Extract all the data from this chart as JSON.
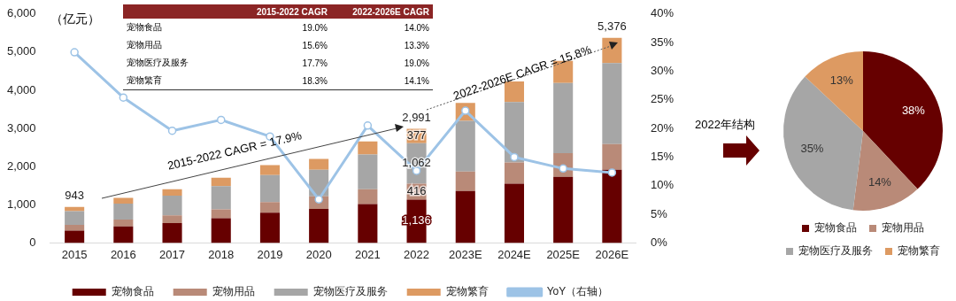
{
  "chart_data": [
    {
      "type": "bar",
      "stacked": true,
      "ylabel": "（亿元）",
      "categories": [
        "2015",
        "2016",
        "2017",
        "2018",
        "2019",
        "2020",
        "2021",
        "2022",
        "2023E",
        "2024E",
        "2025E",
        "2026E"
      ],
      "series": [
        {
          "name": "宠物食品",
          "color": "#660000",
          "values": [
            325,
            430,
            520,
            650,
            790,
            890,
            1020,
            1136,
            1360,
            1550,
            1730,
            1917
          ],
          "value_labels": [
            null,
            null,
            null,
            null,
            null,
            null,
            null,
            "1,136",
            null,
            null,
            null,
            null
          ]
        },
        {
          "name": "宠物用品",
          "color": "#b98a78",
          "values": [
            150,
            180,
            200,
            230,
            280,
            330,
            390,
            416,
            510,
            560,
            620,
            674
          ],
          "value_labels": [
            null,
            null,
            null,
            null,
            null,
            null,
            null,
            "416",
            null,
            null,
            null,
            null
          ]
        },
        {
          "name": "宠物医疗及服务",
          "color": "#a6a6a6",
          "values": [
            360,
            420,
            520,
            610,
            710,
            700,
            910,
            1062,
            1330,
            1580,
            1840,
            2121
          ],
          "value_labels": [
            null,
            null,
            null,
            null,
            null,
            null,
            null,
            "1,062",
            null,
            null,
            null,
            null
          ]
        },
        {
          "name": "宠物繁育",
          "color": "#dd9a62",
          "values": [
            108,
            150,
            170,
            220,
            260,
            280,
            340,
            377,
            470,
            540,
            580,
            664
          ],
          "value_labels": [
            null,
            null,
            null,
            null,
            null,
            null,
            null,
            "377",
            null,
            null,
            null,
            null
          ]
        },
        {
          "name": "YoY（右轴）",
          "type": "line",
          "axis": "y2",
          "marker": "circle",
          "color": "#9dc3e6",
          "values": [
            33.3,
            25.4,
            19.6,
            21.5,
            18.6,
            7.6,
            20.5,
            12.6,
            23.1,
            15.0,
            13.0,
            12.3
          ]
        }
      ],
      "totals": [
        "943",
        null,
        null,
        null,
        null,
        null,
        null,
        "2,991",
        null,
        null,
        null,
        "5,376"
      ],
      "ylim": [
        0,
        6000
      ],
      "yticks": [
        {
          "value": 0,
          "label": "0"
        },
        {
          "value": 1000,
          "label": "1,000"
        },
        {
          "value": 2000,
          "label": "2,000"
        },
        {
          "value": 3000,
          "label": "3,000"
        },
        {
          "value": 4000,
          "label": "4,000"
        },
        {
          "value": 5000,
          "label": "5,000"
        },
        {
          "value": 6000,
          "label": "6,000"
        }
      ],
      "y2lim": [
        0,
        40
      ],
      "y2ticks": [
        {
          "value": 0,
          "label": "0%"
        },
        {
          "value": 5,
          "label": "5%"
        },
        {
          "value": 10,
          "label": "10%"
        },
        {
          "value": 15,
          "label": "15%"
        },
        {
          "value": 20,
          "label": "20%"
        },
        {
          "value": 25,
          "label": "25%"
        },
        {
          "value": 30,
          "label": "30%"
        },
        {
          "value": 35,
          "label": "35%"
        },
        {
          "value": 40,
          "label": "40%"
        }
      ],
      "grid": false,
      "legend": "bottom",
      "annotations": [
        "2015-2022 CAGR = 17.9%",
        "2022-2026E CAGR = 15.8%",
        "2015-2022 CAGR",
        "2022-2026E CAGR",
        "宠物食品",
        "19.0%",
        "14.0%",
        "宠物用品",
        "15.6%",
        "13.3%",
        "宠物医疗及服务",
        "17.7%",
        "19.0%",
        "宠物繁育",
        "18.3%",
        "14.1%"
      ]
    },
    {
      "type": "pie",
      "title": "2022年结构",
      "categories": [
        "宠物食品",
        "宠物用品",
        "宠物医疗及服务",
        "宠物繁育"
      ],
      "values": [
        38,
        14,
        35,
        13
      ],
      "colors": [
        "#660000",
        "#b98a78",
        "#a6a6a6",
        "#dd9a62"
      ],
      "value_labels": [
        "38%",
        "14%",
        "35%",
        "13%"
      ],
      "legend": "bottom"
    }
  ]
}
